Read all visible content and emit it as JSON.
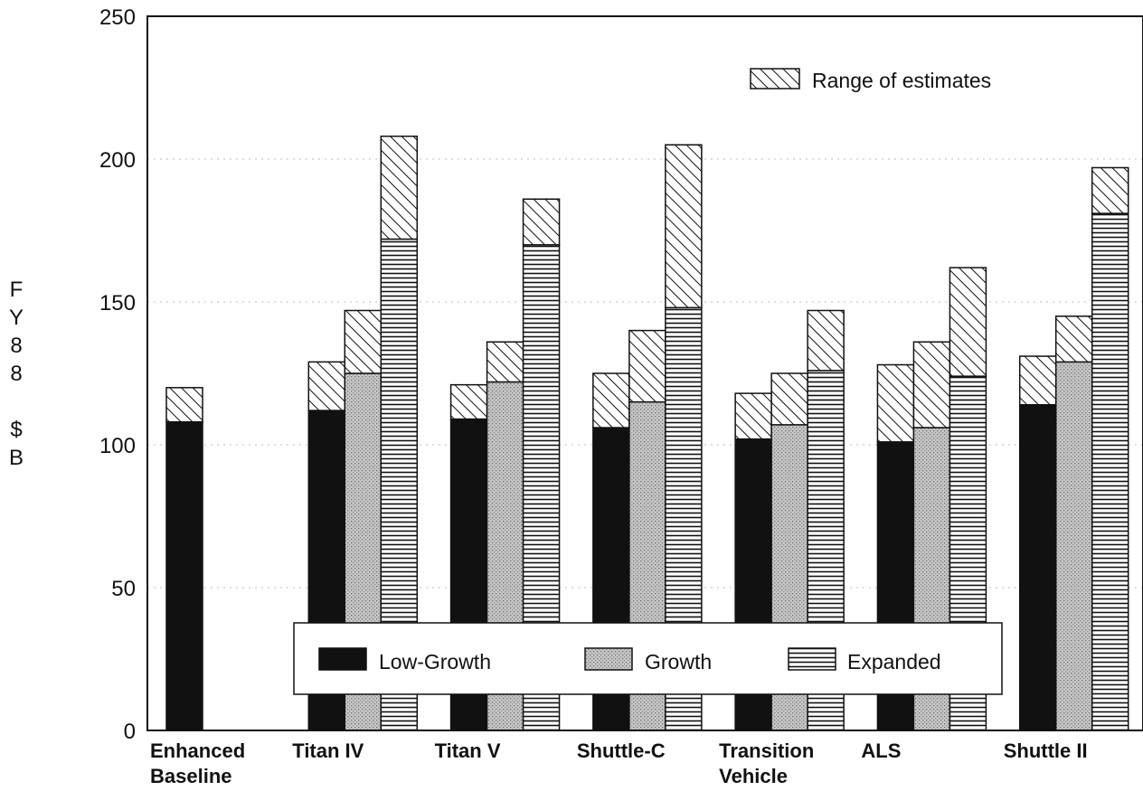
{
  "chart_data": {
    "type": "bar",
    "stacked_range": true,
    "categories": [
      [
        "Enhanced",
        "Baseline"
      ],
      [
        "Titan IV"
      ],
      [
        "Titan V"
      ],
      [
        "Shuttle-C"
      ],
      [
        "Transition",
        "Vehicle"
      ],
      [
        "ALS"
      ],
      [
        "Shuttle II"
      ]
    ],
    "ylabel_letters": [
      "F",
      "Y",
      "8",
      "8",
      "",
      "$",
      "B"
    ],
    "ylim": [
      0,
      250
    ],
    "yticks": [
      0,
      50,
      100,
      150,
      200,
      250
    ],
    "grid": "dotted-horizontal",
    "series": [
      {
        "name": "Low-Growth",
        "pattern": "solid",
        "low": [
          108,
          112,
          109,
          106,
          102,
          101,
          114
        ],
        "high": [
          120,
          129,
          121,
          125,
          118,
          128,
          131
        ]
      },
      {
        "name": "Growth",
        "pattern": "stipple",
        "low": [
          null,
          125,
          122,
          115,
          107,
          106,
          129
        ],
        "high": [
          null,
          147,
          136,
          140,
          125,
          136,
          145
        ]
      },
      {
        "name": "Expanded",
        "pattern": "horizontal-lines",
        "low": [
          null,
          172,
          170,
          148,
          126,
          124,
          181
        ],
        "high": [
          null,
          208,
          186,
          205,
          147,
          162,
          197
        ]
      }
    ],
    "range_legend": {
      "label": "Range of estimates",
      "pattern": "diagonal-hatch",
      "placement": "top-right"
    },
    "legend": {
      "placement": "bottom-center",
      "items": [
        {
          "label": "Low-Growth",
          "pattern": "solid"
        },
        {
          "label": "Growth",
          "pattern": "stipple"
        },
        {
          "label": "Expanded",
          "pattern": "horizontal-lines"
        }
      ]
    },
    "colors": {
      "ink": "#111111",
      "stipple": "#c8c8c8",
      "paper": "#ffffff"
    }
  }
}
